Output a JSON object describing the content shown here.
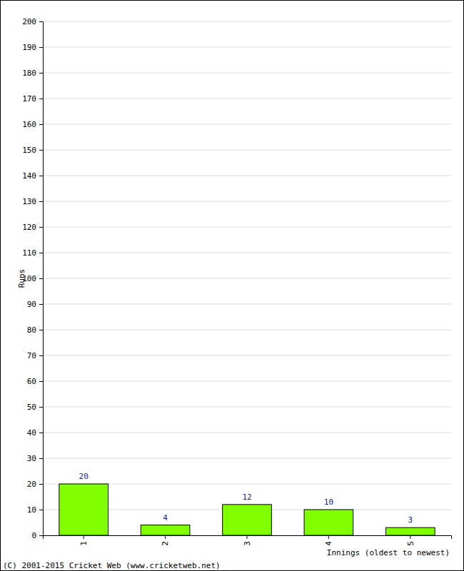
{
  "chart_data": {
    "type": "bar",
    "categories": [
      "1",
      "2",
      "3",
      "4",
      "5"
    ],
    "values": [
      20,
      4,
      12,
      10,
      3
    ],
    "color": "#80ff00",
    "x_label": "Innings (oldest to newest)",
    "y_label": "Runs",
    "annotations": [
      "(C) 2001-2015 Cricket Web (www.cricketweb.net)"
    ],
    "ylim": [
      0,
      200
    ],
    "yticks": [
      0,
      10,
      20,
      30,
      40,
      50,
      60,
      70,
      80,
      90,
      100,
      110,
      120,
      130,
      140,
      150,
      160,
      170,
      180,
      190,
      200
    ],
    "grid": true,
    "data_labels": true
  }
}
